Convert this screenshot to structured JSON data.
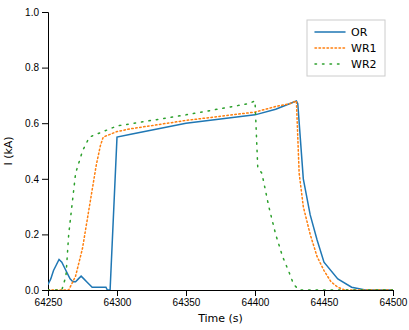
{
  "chart_data": {
    "type": "line",
    "xlabel": "Time (s)",
    "ylabel": "I (kA)",
    "xlim": [
      64250,
      64500
    ],
    "ylim": [
      0,
      1.0
    ],
    "xticks": [
      64250,
      64300,
      64350,
      64400,
      64450,
      64500
    ],
    "yticks": [
      {
        "value": 0.0,
        "label": "0.0"
      },
      0.2,
      0.4,
      0.6,
      0.8,
      {
        "value": 1.0,
        "label": "1.0"
      }
    ],
    "legend": "upper right",
    "grid": false,
    "series": [
      {
        "name": "OR",
        "line_style": "solid",
        "x": [
          64250,
          64252,
          64254,
          64256,
          64258,
          64260,
          64262,
          64264,
          64266,
          64268,
          64270,
          64272,
          64274,
          64276,
          64278,
          64280,
          64282,
          64284,
          64286,
          64288,
          64290,
          64292,
          64293,
          64295,
          64300,
          64310,
          64350,
          64400,
          64415,
          64425,
          64430,
          64431,
          64435,
          64440,
          64445,
          64450,
          64460,
          64470,
          64480,
          64490,
          64500
        ],
        "values": [
          0.02,
          0.04,
          0.07,
          0.09,
          0.11,
          0.1,
          0.08,
          0.06,
          0.04,
          0.03,
          0.03,
          0.04,
          0.05,
          0.04,
          0.03,
          0.02,
          0.01,
          0.01,
          0.01,
          0.01,
          0.01,
          0.01,
          0.0,
          0.0,
          0.55,
          0.56,
          0.6,
          0.63,
          0.65,
          0.67,
          0.68,
          0.67,
          0.4,
          0.27,
          0.18,
          0.1,
          0.04,
          0.01,
          0.0,
          0.0,
          0.0
        ]
      },
      {
        "name": "WR1",
        "line_style": "dotted_dense",
        "x": [
          64250,
          64265,
          64266,
          64270,
          64275,
          64280,
          64285,
          64288,
          64290,
          64295,
          64300,
          64310,
          64350,
          64400,
          64415,
          64425,
          64430,
          64432,
          64435,
          64440,
          64445,
          64450,
          64455,
          64460,
          64465,
          64470,
          64500
        ],
        "values": [
          0.0,
          0.0,
          0.01,
          0.05,
          0.15,
          0.3,
          0.45,
          0.52,
          0.55,
          0.56,
          0.57,
          0.58,
          0.61,
          0.64,
          0.66,
          0.67,
          0.68,
          0.42,
          0.3,
          0.2,
          0.12,
          0.07,
          0.03,
          0.01,
          0.0,
          0.0,
          0.0
        ]
      },
      {
        "name": "WR2",
        "line_style": "dotted_sparse",
        "x": [
          64250,
          64260,
          64263,
          64265,
          64270,
          64275,
          64280,
          64300,
          64350,
          64395,
          64400,
          64402,
          64405,
          64410,
          64415,
          64420,
          64425,
          64428,
          64430,
          64432,
          64434,
          64500
        ],
        "values": [
          0.0,
          0.0,
          0.05,
          0.2,
          0.42,
          0.5,
          0.55,
          0.59,
          0.63,
          0.67,
          0.68,
          0.44,
          0.42,
          0.3,
          0.2,
          0.12,
          0.06,
          0.02,
          0.01,
          0.0,
          0.0,
          0.0
        ]
      }
    ]
  }
}
